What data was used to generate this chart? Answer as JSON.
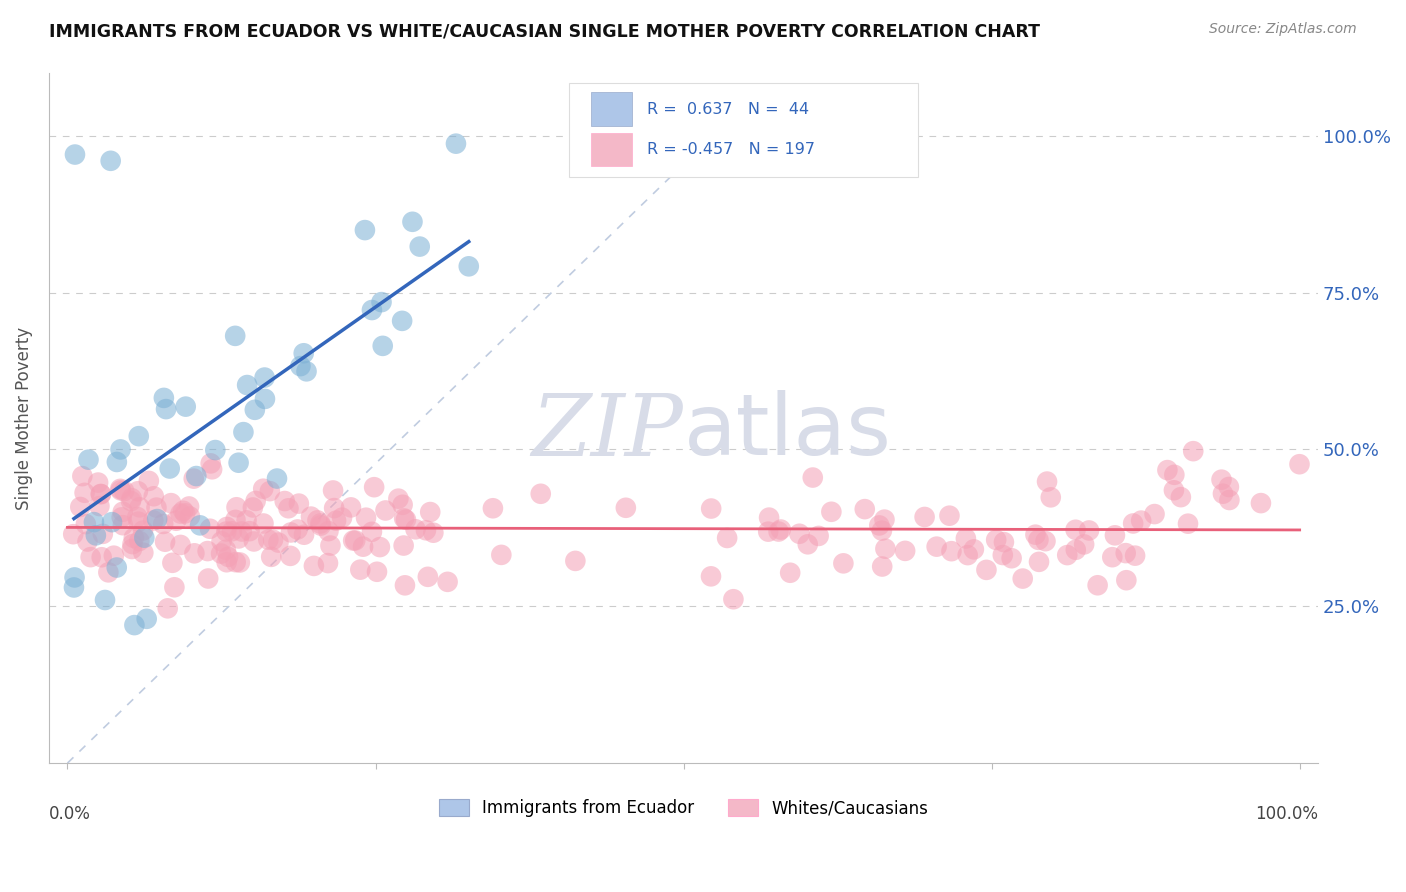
{
  "title": "IMMIGRANTS FROM ECUADOR VS WHITE/CAUCASIAN SINGLE MOTHER POVERTY CORRELATION CHART",
  "source": "Source: ZipAtlas.com",
  "ylabel": "Single Mother Poverty",
  "ytick_vals": [
    0.25,
    0.5,
    0.75,
    1.0
  ],
  "ytick_labels": [
    "25.0%",
    "50.0%",
    "75.0%",
    "100.0%"
  ],
  "blue_color": "#7BAFD4",
  "pink_color": "#F4A0B5",
  "line_blue": "#3366BB",
  "line_pink": "#E8607A",
  "dash_color": "#C0CCE0",
  "watermark_color": "#D8DCE8",
  "blue_R": 0.637,
  "blue_N": 44,
  "pink_R": -0.457,
  "pink_N": 197,
  "legend_blue_fill": "#AEC6E8",
  "legend_pink_fill": "#F4B8C8",
  "legend_border": "#DDDDDD",
  "title_color": "#111111",
  "source_color": "#888888",
  "ylabel_color": "#555555",
  "tick_label_color": "#3366BB"
}
